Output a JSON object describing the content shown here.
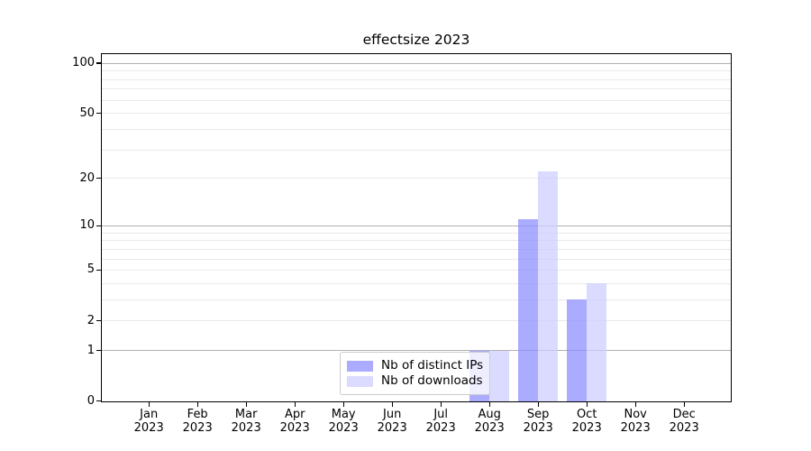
{
  "title": "effectsize 2023",
  "chart_data": {
    "type": "bar",
    "title": "effectsize 2023",
    "categories": [
      "Jan",
      "Feb",
      "Mar",
      "Apr",
      "May",
      "Jun",
      "Jul",
      "Aug",
      "Sep",
      "Oct",
      "Nov",
      "Dec"
    ],
    "year_label": "2023",
    "series": [
      {
        "name": "Nb of distinct IPs",
        "color": "#8888ff",
        "alpha": 0.7,
        "values": [
          0,
          0,
          0,
          0,
          0,
          0,
          0,
          1,
          11,
          3,
          0,
          0
        ]
      },
      {
        "name": "Nb of downloads",
        "color": "#ccccff",
        "alpha": 0.7,
        "values": [
          0,
          0,
          0,
          0,
          0,
          0,
          0,
          1,
          22,
          4,
          0,
          0
        ]
      }
    ],
    "xlabel": "",
    "ylabel": "",
    "y_scale": "log10(1+v)",
    "y_tick_values": [
      0,
      1,
      2,
      5,
      10,
      20,
      50,
      100
    ],
    "y_tick_labels": [
      "0",
      "1",
      "2",
      "5",
      "10",
      "20",
      "50",
      "100"
    ],
    "y_major_gridlines": [
      1,
      10,
      100
    ],
    "y_minor_gridlines": [
      2,
      3,
      4,
      5,
      6,
      7,
      8,
      9,
      20,
      30,
      40,
      50,
      60,
      70,
      80,
      90
    ],
    "ylim": [
      0,
      114
    ],
    "grid": true,
    "legend_position": "lower center",
    "colors": {
      "spine": "#000000",
      "major_grid": "#b2b2b2",
      "minor_grid": "#e9e9e9",
      "legend_border": "#cccccc",
      "text": "#000000"
    }
  }
}
